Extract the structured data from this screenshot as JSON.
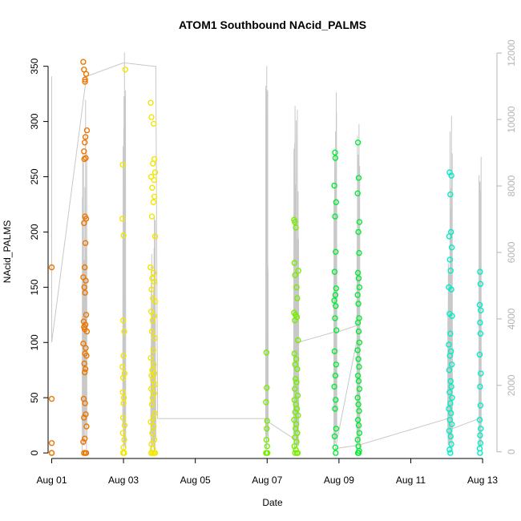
{
  "chart_data": {
    "type": "scatter",
    "title": "ATOM1 Southbound NAcid_PALMS",
    "xlabel": "Date",
    "ylabel": "NAcid_PALMS",
    "xlim": [
      -0.1,
      12.4
    ],
    "ylim": [
      -5,
      365
    ],
    "y2lim": [
      -200,
      12100
    ],
    "x_ticks": [
      {
        "value": 0,
        "label": "Aug 01"
      },
      {
        "value": 2,
        "label": "Aug 03"
      },
      {
        "value": 4,
        "label": "Aug 05"
      },
      {
        "value": 6,
        "label": "Aug 07"
      },
      {
        "value": 8,
        "label": "Aug 09"
      },
      {
        "value": 10,
        "label": "Aug 11"
      },
      {
        "value": 12,
        "label": "Aug 13"
      }
    ],
    "y_ticks": [
      0,
      50,
      100,
      150,
      200,
      250,
      300,
      350
    ],
    "y2_ticks": [
      0,
      2000,
      4000,
      6000,
      8000,
      10000,
      12000
    ],
    "grid": false,
    "legend": "none",
    "colors": {
      "aug01": "#ee7600",
      "aug03": "#f2e600",
      "aug06": "#77ee00",
      "aug08": "#00ee33",
      "aug12": "#00eec4",
      "secondary_line": "#c8c8c8",
      "secondary_axis": "#b4b4b4"
    },
    "series": [
      {
        "color": "#ee7600",
        "points": [
          [
            0.0,
            168
          ],
          [
            0.0,
            49
          ],
          [
            0.0,
            9
          ],
          [
            0.0,
            0
          ],
          [
            0.0,
            0
          ],
          [
            0.88,
            354
          ],
          [
            0.9,
            347
          ],
          [
            0.93,
            338
          ],
          [
            0.96,
            343
          ],
          [
            0.93,
            336
          ],
          [
            0.98,
            292
          ],
          [
            0.94,
            286
          ],
          [
            0.92,
            281
          ],
          [
            0.9,
            273
          ],
          [
            0.95,
            267
          ],
          [
            0.91,
            266
          ],
          [
            0.93,
            214
          ],
          [
            0.96,
            212
          ],
          [
            0.9,
            208
          ],
          [
            0.94,
            190
          ],
          [
            0.92,
            168
          ],
          [
            0.88,
            159
          ],
          [
            0.95,
            156
          ],
          [
            0.91,
            150
          ],
          [
            0.93,
            145
          ],
          [
            0.96,
            125
          ],
          [
            0.89,
            119
          ],
          [
            0.94,
            116
          ],
          [
            0.9,
            114
          ],
          [
            0.92,
            112
          ],
          [
            0.98,
            110
          ],
          [
            0.88,
            99
          ],
          [
            0.95,
            95
          ],
          [
            0.93,
            90
          ],
          [
            0.97,
            88
          ],
          [
            0.91,
            81
          ],
          [
            0.94,
            76
          ],
          [
            0.92,
            73
          ],
          [
            0.89,
            49
          ],
          [
            0.93,
            45
          ],
          [
            0.95,
            35
          ],
          [
            0.9,
            32
          ],
          [
            0.97,
            24
          ],
          [
            0.92,
            13
          ],
          [
            0.88,
            10
          ],
          [
            0.94,
            0
          ],
          [
            0.9,
            0
          ],
          [
            0.96,
            0
          ]
        ]
      },
      {
        "color": "#f2e600",
        "points": [
          [
            2.05,
            347
          ],
          [
            1.98,
            261
          ],
          [
            1.97,
            212
          ],
          [
            2.0,
            197
          ],
          [
            1.99,
            120
          ],
          [
            2.02,
            110
          ],
          [
            2.0,
            88
          ],
          [
            1.97,
            78
          ],
          [
            2.03,
            72
          ],
          [
            1.99,
            68
          ],
          [
            1.98,
            55
          ],
          [
            2.01,
            50
          ],
          [
            2.0,
            45
          ],
          [
            1.99,
            32
          ],
          [
            2.03,
            25
          ],
          [
            1.98,
            18
          ],
          [
            2.02,
            12
          ],
          [
            2.0,
            5
          ],
          [
            1.99,
            0
          ],
          [
            2.02,
            0
          ],
          [
            2.76,
            317
          ],
          [
            2.78,
            304
          ],
          [
            2.84,
            298
          ],
          [
            2.86,
            266
          ],
          [
            2.82,
            262
          ],
          [
            2.88,
            254
          ],
          [
            2.77,
            250
          ],
          [
            2.85,
            247
          ],
          [
            2.8,
            240
          ],
          [
            2.86,
            232
          ],
          [
            2.83,
            227
          ],
          [
            2.79,
            214
          ],
          [
            2.88,
            196
          ],
          [
            2.75,
            168
          ],
          [
            2.84,
            163
          ],
          [
            2.8,
            158
          ],
          [
            2.86,
            155
          ],
          [
            2.78,
            148
          ],
          [
            2.82,
            140
          ],
          [
            2.88,
            137
          ],
          [
            2.77,
            128
          ],
          [
            2.85,
            124
          ],
          [
            2.81,
            120
          ],
          [
            2.79,
            110
          ],
          [
            2.87,
            104
          ],
          [
            2.83,
            93
          ],
          [
            2.76,
            86
          ],
          [
            2.84,
            80
          ],
          [
            2.8,
            75
          ],
          [
            2.86,
            72
          ],
          [
            2.78,
            70
          ],
          [
            2.82,
            66
          ],
          [
            2.88,
            62
          ],
          [
            2.77,
            58
          ],
          [
            2.85,
            54
          ],
          [
            2.81,
            50
          ],
          [
            2.79,
            44
          ],
          [
            2.87,
            36
          ],
          [
            2.83,
            32
          ],
          [
            2.76,
            28
          ],
          [
            2.84,
            24
          ],
          [
            2.8,
            18
          ],
          [
            2.86,
            12
          ],
          [
            2.78,
            8
          ],
          [
            2.82,
            4
          ],
          [
            2.88,
            0
          ],
          [
            2.77,
            0
          ],
          [
            2.85,
            0
          ],
          [
            2.81,
            0
          ]
        ]
      },
      {
        "color": "#77ee00",
        "points": [
          [
            5.98,
            91
          ],
          [
            5.99,
            59
          ],
          [
            5.97,
            46
          ],
          [
            6.0,
            29
          ],
          [
            5.99,
            22
          ],
          [
            5.98,
            12
          ],
          [
            6.0,
            6
          ],
          [
            5.99,
            0
          ],
          [
            5.97,
            0
          ],
          [
            6.01,
            0
          ],
          [
            6.75,
            211
          ],
          [
            6.77,
            209
          ],
          [
            6.8,
            204
          ],
          [
            6.87,
            165
          ],
          [
            6.76,
            172
          ],
          [
            6.78,
            161
          ],
          [
            6.82,
            150
          ],
          [
            6.84,
            140
          ],
          [
            6.75,
            127
          ],
          [
            6.79,
            125
          ],
          [
            6.83,
            123
          ],
          [
            6.77,
            120
          ],
          [
            6.86,
            102
          ],
          [
            6.76,
            90
          ],
          [
            6.81,
            85
          ],
          [
            6.78,
            80
          ],
          [
            6.84,
            76
          ],
          [
            6.79,
            67
          ],
          [
            6.82,
            64
          ],
          [
            6.77,
            58
          ],
          [
            6.85,
            52
          ],
          [
            6.76,
            48
          ],
          [
            6.8,
            44
          ],
          [
            6.83,
            40
          ],
          [
            6.78,
            37
          ],
          [
            6.86,
            34
          ],
          [
            6.75,
            30
          ],
          [
            6.81,
            26
          ],
          [
            6.79,
            22
          ],
          [
            6.84,
            18
          ],
          [
            6.77,
            14
          ],
          [
            6.82,
            10
          ],
          [
            6.76,
            6
          ],
          [
            6.8,
            3
          ],
          [
            6.85,
            0
          ],
          [
            6.78,
            0
          ],
          [
            6.83,
            0
          ]
        ]
      },
      {
        "color": "#00ee33",
        "points": [
          [
            7.89,
            272
          ],
          [
            7.9,
            267
          ],
          [
            7.87,
            242
          ],
          [
            7.92,
            227
          ],
          [
            7.89,
            214
          ],
          [
            7.91,
            182
          ],
          [
            7.88,
            164
          ],
          [
            7.92,
            149
          ],
          [
            7.9,
            143
          ],
          [
            7.87,
            138
          ],
          [
            7.91,
            133
          ],
          [
            7.89,
            122
          ],
          [
            7.93,
            111
          ],
          [
            7.88,
            92
          ],
          [
            7.92,
            80
          ],
          [
            7.9,
            70
          ],
          [
            7.87,
            60
          ],
          [
            7.91,
            48
          ],
          [
            7.89,
            40
          ],
          [
            7.92,
            22
          ],
          [
            7.88,
            15
          ],
          [
            7.9,
            5
          ],
          [
            7.91,
            0
          ],
          [
            8.53,
            281
          ],
          [
            8.55,
            249
          ],
          [
            8.52,
            235
          ],
          [
            8.57,
            209
          ],
          [
            8.54,
            200
          ],
          [
            8.56,
            181
          ],
          [
            8.53,
            163
          ],
          [
            8.55,
            158
          ],
          [
            8.57,
            150
          ],
          [
            8.52,
            143
          ],
          [
            8.54,
            135
          ],
          [
            8.56,
            122
          ],
          [
            8.53,
            118
          ],
          [
            8.55,
            110
          ],
          [
            8.57,
            100
          ],
          [
            8.52,
            93
          ],
          [
            8.54,
            85
          ],
          [
            8.56,
            78
          ],
          [
            8.53,
            70
          ],
          [
            8.55,
            65
          ],
          [
            8.57,
            58
          ],
          [
            8.52,
            50
          ],
          [
            8.54,
            44
          ],
          [
            8.56,
            38
          ],
          [
            8.53,
            30
          ],
          [
            8.55,
            25
          ],
          [
            8.57,
            18
          ],
          [
            8.52,
            12
          ],
          [
            8.54,
            6
          ],
          [
            8.56,
            2
          ],
          [
            8.53,
            0
          ],
          [
            8.55,
            0
          ]
        ]
      },
      {
        "color": "#00eec4",
        "points": [
          [
            11.08,
            254
          ],
          [
            11.13,
            251
          ],
          [
            11.1,
            234
          ],
          [
            11.12,
            200
          ],
          [
            11.07,
            196
          ],
          [
            11.14,
            186
          ],
          [
            11.09,
            175
          ],
          [
            11.11,
            165
          ],
          [
            11.06,
            150
          ],
          [
            11.13,
            148
          ],
          [
            11.08,
            126
          ],
          [
            11.15,
            124
          ],
          [
            11.1,
            108
          ],
          [
            11.06,
            98
          ],
          [
            11.12,
            92
          ],
          [
            11.09,
            88
          ],
          [
            11.14,
            80
          ],
          [
            11.07,
            75
          ],
          [
            11.11,
            65
          ],
          [
            11.13,
            60
          ],
          [
            11.08,
            55
          ],
          [
            11.15,
            50
          ],
          [
            11.1,
            45
          ],
          [
            11.06,
            40
          ],
          [
            11.12,
            36
          ],
          [
            11.09,
            30
          ],
          [
            11.14,
            26
          ],
          [
            11.07,
            20
          ],
          [
            11.11,
            15
          ],
          [
            11.13,
            8
          ],
          [
            11.08,
            3
          ],
          [
            11.1,
            0
          ],
          [
            11.93,
            164
          ],
          [
            11.94,
            153
          ],
          [
            11.92,
            134
          ],
          [
            11.95,
            129
          ],
          [
            11.93,
            118
          ],
          [
            11.94,
            108
          ],
          [
            11.92,
            89
          ],
          [
            11.95,
            72
          ],
          [
            11.93,
            60
          ],
          [
            11.94,
            43
          ],
          [
            11.92,
            30
          ],
          [
            11.95,
            22
          ],
          [
            11.93,
            16
          ],
          [
            11.94,
            9
          ],
          [
            11.92,
            4
          ],
          [
            11.93,
            0
          ]
        ]
      }
    ],
    "secondary_spikes": [
      {
        "start": 0.85,
        "end": 0.98,
        "peak": 11300
      },
      {
        "start": 1.98,
        "end": 2.06,
        "peak": 12100
      },
      {
        "start": 2.76,
        "end": 2.9,
        "peak": 7700
      },
      {
        "start": 5.96,
        "end": 6.03,
        "peak": 11850
      },
      {
        "start": 6.74,
        "end": 6.88,
        "peak": 11450
      },
      {
        "start": 7.86,
        "end": 7.94,
        "peak": 11400
      },
      {
        "start": 8.5,
        "end": 8.58,
        "peak": 11200
      },
      {
        "start": 11.03,
        "end": 11.16,
        "peak": 10300
      },
      {
        "start": 11.9,
        "end": 11.96,
        "peak": 9100
      }
    ],
    "secondary_connector": [
      [
        0.0,
        11300
      ],
      [
        0.0,
        3300
      ],
      [
        0.97,
        11300
      ],
      [
        0.98,
        11300
      ],
      [
        1.98,
        11700
      ],
      [
        2.06,
        11700
      ],
      [
        2.85,
        11600
      ],
      [
        2.9,
        11600
      ],
      [
        2.95,
        1000
      ],
      [
        5.96,
        1000
      ],
      [
        5.98,
        1000
      ],
      [
        6.03,
        900
      ],
      [
        6.74,
        400
      ],
      [
        6.88,
        3300
      ],
      [
        7.86,
        3600
      ],
      [
        7.94,
        3600
      ],
      [
        8.5,
        3800
      ],
      [
        8.58,
        3800
      ],
      [
        7.9,
        100
      ],
      [
        8.55,
        200
      ],
      [
        11.03,
        1000
      ],
      [
        11.16,
        700
      ],
      [
        11.9,
        1000
      ]
    ]
  }
}
